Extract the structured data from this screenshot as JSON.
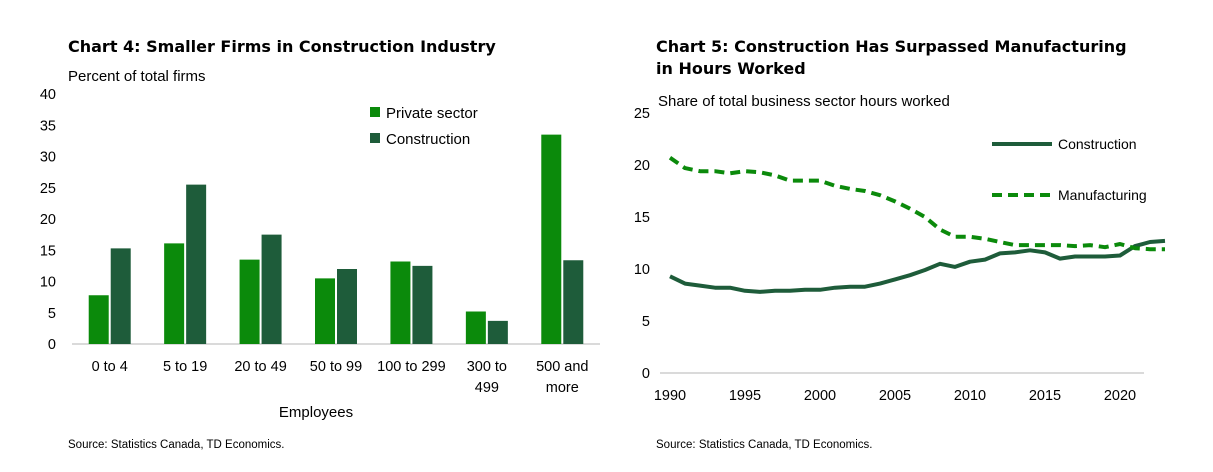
{
  "chart_data": [
    {
      "type": "bar",
      "title": "Chart 4: Smaller Firms in Construction Industry",
      "ylabel": "Percent of total firms",
      "xlabel": "Employees",
      "source": "Source: Statistics Canada, TD Economics.",
      "ylim": [
        0,
        40
      ],
      "yticks": [
        0,
        5,
        10,
        15,
        20,
        25,
        30,
        35,
        40
      ],
      "categories": [
        [
          "0 to 4"
        ],
        [
          "5 to 19"
        ],
        [
          "20 to 49"
        ],
        [
          "50 to 99"
        ],
        [
          "100 to 299"
        ],
        [
          "300 to",
          "499"
        ],
        [
          "500 and",
          "more"
        ]
      ],
      "series": [
        {
          "name": "Private sector",
          "color": "#0b8a0b",
          "values": [
            7.8,
            16.1,
            13.5,
            10.5,
            13.2,
            5.2,
            33.5
          ]
        },
        {
          "name": "Construction",
          "color": "#1e5c3a",
          "values": [
            15.3,
            25.5,
            17.5,
            12.0,
            12.5,
            3.7,
            13.4
          ]
        }
      ],
      "grid": false,
      "legend_position": "top-right"
    },
    {
      "type": "line",
      "title_lines": [
        "Chart 5: Construction Has Surpassed Manufacturing",
        "in Hours Worked"
      ],
      "ylabel": "Share of total business sector hours worked",
      "source": "Source: Statistics Canada, TD Economics.",
      "ylim": [
        0,
        25
      ],
      "yticks": [
        0,
        5,
        10,
        15,
        20,
        25
      ],
      "xlim": [
        1990,
        2023
      ],
      "xticks": [
        1990,
        1995,
        2000,
        2005,
        2010,
        2015,
        2020
      ],
      "x": [
        1990,
        1991,
        1992,
        1993,
        1994,
        1995,
        1996,
        1997,
        1998,
        1999,
        2000,
        2001,
        2002,
        2003,
        2004,
        2005,
        2006,
        2007,
        2008,
        2009,
        2010,
        2011,
        2012,
        2013,
        2014,
        2015,
        2016,
        2017,
        2018,
        2019,
        2020,
        2021,
        2022,
        2023
      ],
      "series": [
        {
          "name": "Construction",
          "color": "#1e5c3a",
          "style": "solid",
          "values": [
            9.3,
            8.6,
            8.4,
            8.2,
            8.2,
            7.9,
            7.8,
            7.9,
            7.9,
            8.0,
            8.0,
            8.2,
            8.3,
            8.3,
            8.6,
            9.0,
            9.4,
            9.9,
            10.5,
            10.2,
            10.7,
            10.9,
            11.5,
            11.6,
            11.8,
            11.6,
            11.0,
            11.2,
            11.2,
            11.2,
            11.3,
            12.2,
            12.6,
            12.7
          ]
        },
        {
          "name": "Manufacturing",
          "color": "#0b8a0b",
          "style": "dashed",
          "values": [
            20.7,
            19.7,
            19.4,
            19.4,
            19.2,
            19.4,
            19.3,
            19.0,
            18.5,
            18.5,
            18.5,
            18.0,
            17.7,
            17.5,
            17.1,
            16.5,
            15.8,
            15.0,
            13.8,
            13.1,
            13.1,
            12.9,
            12.6,
            12.3,
            12.3,
            12.3,
            12.3,
            12.2,
            12.3,
            12.1,
            12.4,
            12.0,
            11.9,
            11.9
          ]
        }
      ],
      "grid": false,
      "legend_position": "top-right"
    }
  ]
}
